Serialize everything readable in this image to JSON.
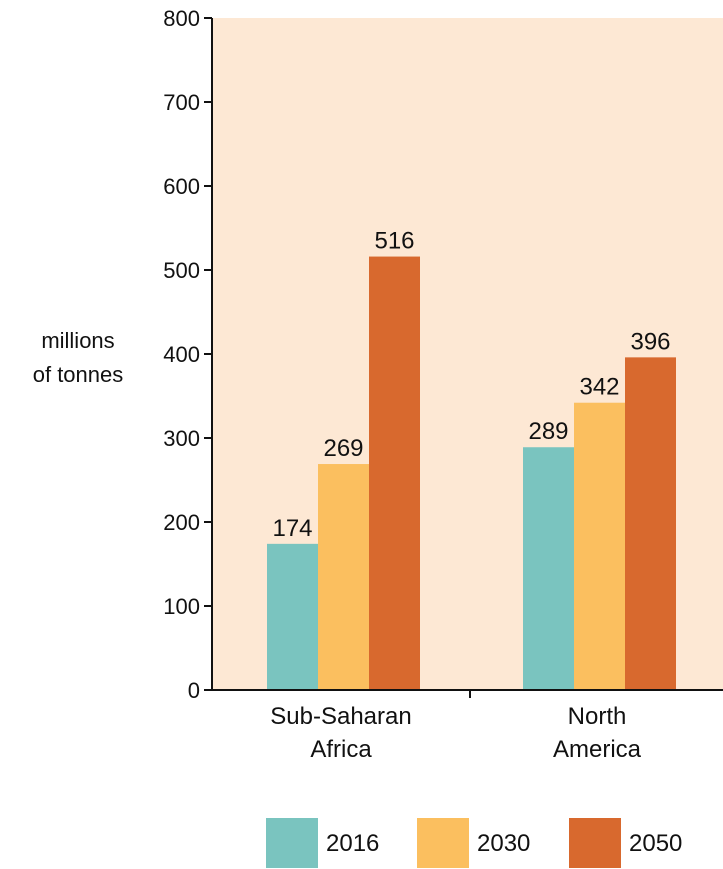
{
  "chart_data": {
    "type": "bar",
    "categories": [
      "Sub-Saharan Africa",
      "North America"
    ],
    "category_lines": [
      [
        "Sub-Saharan",
        "Africa"
      ],
      [
        "North",
        "America"
      ]
    ],
    "series": [
      {
        "name": "2016",
        "values": [
          174,
          289
        ],
        "color": "#7ac4bf"
      },
      {
        "name": "2030",
        "values": [
          269,
          342
        ],
        "color": "#fbbf5f"
      },
      {
        "name": "2050",
        "values": [
          516,
          396
        ],
        "color": "#d8692e"
      }
    ],
    "ylabel_lines": [
      "millions",
      "of tonnes"
    ],
    "ylim": [
      0,
      800
    ],
    "yticks": [
      0,
      100,
      200,
      300,
      400,
      500,
      600,
      700,
      800
    ],
    "grid": false,
    "legend_position": "bottom-right",
    "plot_background": "#fde8d4"
  }
}
